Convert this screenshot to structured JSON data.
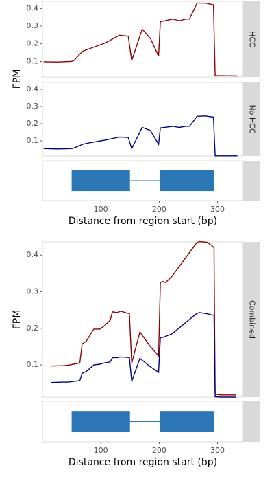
{
  "chart_data": [
    {
      "type": "line",
      "strip": "HCC",
      "ylabel": "FPM",
      "x": [
        2,
        26,
        49,
        53,
        69,
        79,
        108,
        132,
        147,
        153,
        171,
        185,
        199,
        202,
        224,
        234,
        246,
        252,
        265,
        279,
        293,
        296,
        334
      ],
      "series": [
        {
          "color": "#8b0000",
          "values": [
            0.098,
            0.097,
            0.1,
            0.103,
            0.158,
            0.17,
            0.205,
            0.248,
            0.243,
            0.105,
            0.283,
            0.23,
            0.13,
            0.325,
            0.34,
            0.33,
            0.34,
            0.34,
            0.43,
            0.43,
            0.42,
            0.02,
            0.018
          ]
        }
      ],
      "xlim": [
        0,
        344
      ],
      "ylim": [
        0.012,
        0.44
      ],
      "yticks": [
        0.1,
        0.2,
        0.3,
        0.4
      ]
    },
    {
      "type": "line",
      "strip": "No HCC",
      "x": [
        2,
        26,
        49,
        53,
        69,
        79,
        108,
        132,
        147,
        153,
        171,
        185,
        199,
        202,
        224,
        234,
        246,
        252,
        265,
        279,
        293,
        296,
        334
      ],
      "series": [
        {
          "color": "#00007f",
          "values": [
            0.055,
            0.053,
            0.055,
            0.057,
            0.08,
            0.088,
            0.105,
            0.122,
            0.12,
            0.055,
            0.178,
            0.16,
            0.08,
            0.175,
            0.185,
            0.178,
            0.185,
            0.185,
            0.243,
            0.245,
            0.238,
            0.013,
            0.013
          ]
        }
      ],
      "xlim": [
        0,
        344
      ],
      "ylim": [
        0.012,
        0.44
      ],
      "yticks": [
        0.1,
        0.2,
        0.3,
        0.4
      ]
    },
    {
      "type": "gene",
      "exons": [
        [
          50,
          150
        ],
        [
          201,
          294
        ]
      ],
      "color": "#2b77b5",
      "xlim": [
        0,
        344
      ],
      "xticks": [
        100,
        200,
        300
      ],
      "xlabel": "Distance from region start (bp)"
    },
    {
      "type": "line",
      "strip": "Combined",
      "ylabel": "FPM",
      "x": [
        15,
        35,
        44,
        53,
        64,
        68,
        75,
        88,
        98,
        105,
        116,
        120,
        128,
        134,
        144,
        149,
        153,
        167,
        185,
        199,
        202,
        206,
        211,
        222,
        264,
        269,
        282,
        291,
        294,
        296,
        305,
        332
      ],
      "series": [
        {
          "color": "#8b0000",
          "values": [
            0.097,
            0.098,
            0.099,
            0.102,
            0.105,
            0.157,
            0.165,
            0.198,
            0.198,
            0.205,
            0.222,
            0.245,
            0.243,
            0.247,
            0.242,
            0.24,
            0.105,
            0.19,
            0.15,
            0.125,
            0.325,
            0.328,
            0.325,
            0.342,
            0.433,
            0.437,
            0.435,
            0.425,
            0.42,
            0.02,
            0.018,
            0.018
          ]
        },
        {
          "color": "#00007f",
          "values": [
            0.052,
            0.053,
            0.053,
            0.055,
            0.057,
            0.077,
            0.082,
            0.1,
            0.102,
            0.105,
            0.108,
            0.12,
            0.12,
            0.122,
            0.121,
            0.12,
            0.055,
            0.118,
            0.095,
            0.08,
            0.175,
            0.175,
            0.178,
            0.185,
            0.24,
            0.243,
            0.24,
            0.236,
            0.236,
            0.013,
            0.012,
            0.012
          ]
        }
      ],
      "xlim": [
        0,
        344
      ],
      "ylim": [
        0.012,
        0.436
      ],
      "yticks": [
        0.1,
        0.2,
        0.3,
        0.4
      ]
    },
    {
      "type": "gene",
      "exons": [
        [
          50,
          150
        ],
        [
          201,
          294
        ]
      ],
      "color": "#2b77b5",
      "xlim": [
        0,
        344
      ],
      "xticks": [
        100,
        200,
        300
      ],
      "xlabel": "Distance from region start (bp)"
    }
  ]
}
